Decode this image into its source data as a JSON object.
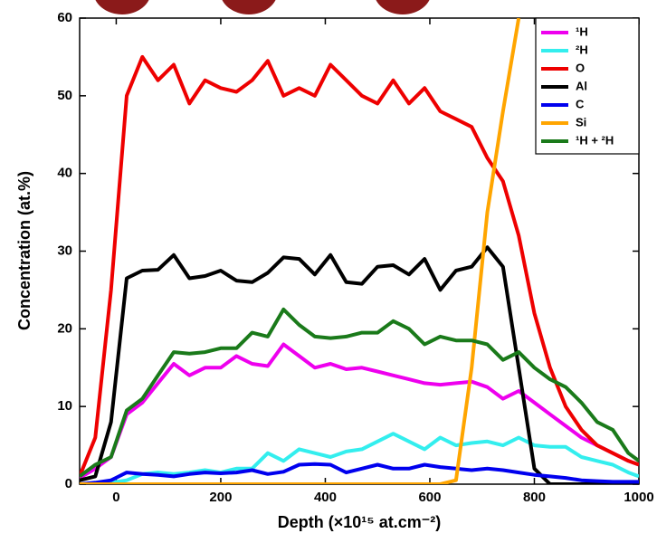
{
  "chart_data": {
    "type": "line",
    "xlabel": "Depth (×10¹⁵ at.cm⁻²)",
    "ylabel": "Concentration (at.%)",
    "x": [
      -70,
      -40,
      -10,
      20,
      50,
      80,
      110,
      140,
      170,
      200,
      230,
      260,
      290,
      320,
      350,
      380,
      410,
      440,
      470,
      500,
      530,
      560,
      590,
      620,
      650,
      680,
      710,
      740,
      770,
      800,
      830,
      860,
      890,
      920,
      950,
      980,
      1000
    ],
    "xlim": [
      -70,
      1000
    ],
    "xticks": [
      0,
      200,
      400,
      600,
      800,
      1000
    ],
    "ylim": [
      0,
      60
    ],
    "yticks": [
      0,
      10,
      20,
      30,
      40,
      50,
      60
    ],
    "legend": "upper right",
    "series": [
      {
        "name": "¹H",
        "color": "#ee00ee",
        "values": [
          0.8,
          2,
          3.5,
          9,
          10.5,
          13,
          15.5,
          14,
          15,
          15,
          16.5,
          15.5,
          15.2,
          18,
          16.5,
          15,
          15.5,
          14.8,
          15,
          14.5,
          14,
          13.5,
          13,
          12.8,
          13,
          13.2,
          12.5,
          11,
          12,
          10.5,
          9,
          7.5,
          6,
          5,
          4,
          3,
          2.5
        ]
      },
      {
        "name": "²H",
        "color": "#33eeee",
        "values": [
          0,
          0,
          0.2,
          0.5,
          1.3,
          1.5,
          1.3,
          1.5,
          1.8,
          1.5,
          2,
          2,
          4,
          3,
          4.5,
          4,
          3.5,
          4.2,
          4.5,
          5.5,
          6.5,
          5.5,
          4.5,
          6,
          5,
          5.3,
          5.5,
          5,
          6,
          5,
          4.8,
          4.8,
          3.5,
          3,
          2.5,
          1.5,
          1
        ]
      },
      {
        "name": "O",
        "color": "#ee0000",
        "values": [
          1,
          6,
          25,
          50,
          55,
          52,
          54,
          49,
          52,
          51,
          50.5,
          52,
          54.5,
          50,
          51,
          50,
          54,
          52,
          50,
          49,
          52,
          49,
          51,
          48,
          47,
          46,
          42,
          39,
          32,
          22,
          15,
          10,
          7,
          5,
          4,
          3,
          2.5
        ]
      },
      {
        "name": "Al",
        "color": "#000000",
        "values": [
          0.5,
          1,
          8,
          26.5,
          27.5,
          27.6,
          29.5,
          26.5,
          26.8,
          27.5,
          26.2,
          26,
          27.2,
          29.2,
          29,
          27,
          29.5,
          26,
          25.8,
          28,
          28.2,
          27,
          29,
          25,
          27.5,
          28,
          30.5,
          28,
          15,
          2,
          0,
          0,
          0,
          0,
          0,
          0,
          0
        ]
      },
      {
        "name": "C",
        "color": "#0000ee",
        "values": [
          0,
          0.2,
          0.5,
          1.5,
          1.3,
          1.2,
          1,
          1.3,
          1.5,
          1.4,
          1.5,
          1.8,
          1.3,
          1.6,
          2.5,
          2.6,
          2.5,
          1.5,
          2,
          2.5,
          2,
          2,
          2.5,
          2.2,
          2,
          1.8,
          2,
          1.8,
          1.5,
          1.2,
          1,
          0.8,
          0.5,
          0.4,
          0.3,
          0.3,
          0.3
        ]
      },
      {
        "name": "Si",
        "color": "#ffa500",
        "values": [
          0,
          0,
          0,
          0,
          0,
          0,
          0,
          0,
          0,
          0,
          0,
          0,
          0,
          0,
          0,
          0,
          0,
          0,
          0,
          0,
          0,
          0,
          0,
          0,
          0.5,
          15,
          35,
          48,
          60,
          null,
          null,
          null,
          null,
          null,
          null,
          null,
          null
        ]
      },
      {
        "name": "¹H + ²H",
        "color": "#1a7a1a",
        "values": [
          1,
          2.5,
          3.5,
          9.5,
          11,
          14,
          17,
          16.8,
          17,
          17.5,
          17.5,
          19.5,
          19,
          22.5,
          20.5,
          19,
          18.8,
          19,
          19.5,
          19.5,
          21,
          20,
          18,
          19,
          18.5,
          18.5,
          18,
          16,
          17,
          15,
          13.5,
          12.5,
          10.5,
          8,
          7,
          4,
          3
        ]
      }
    ]
  }
}
